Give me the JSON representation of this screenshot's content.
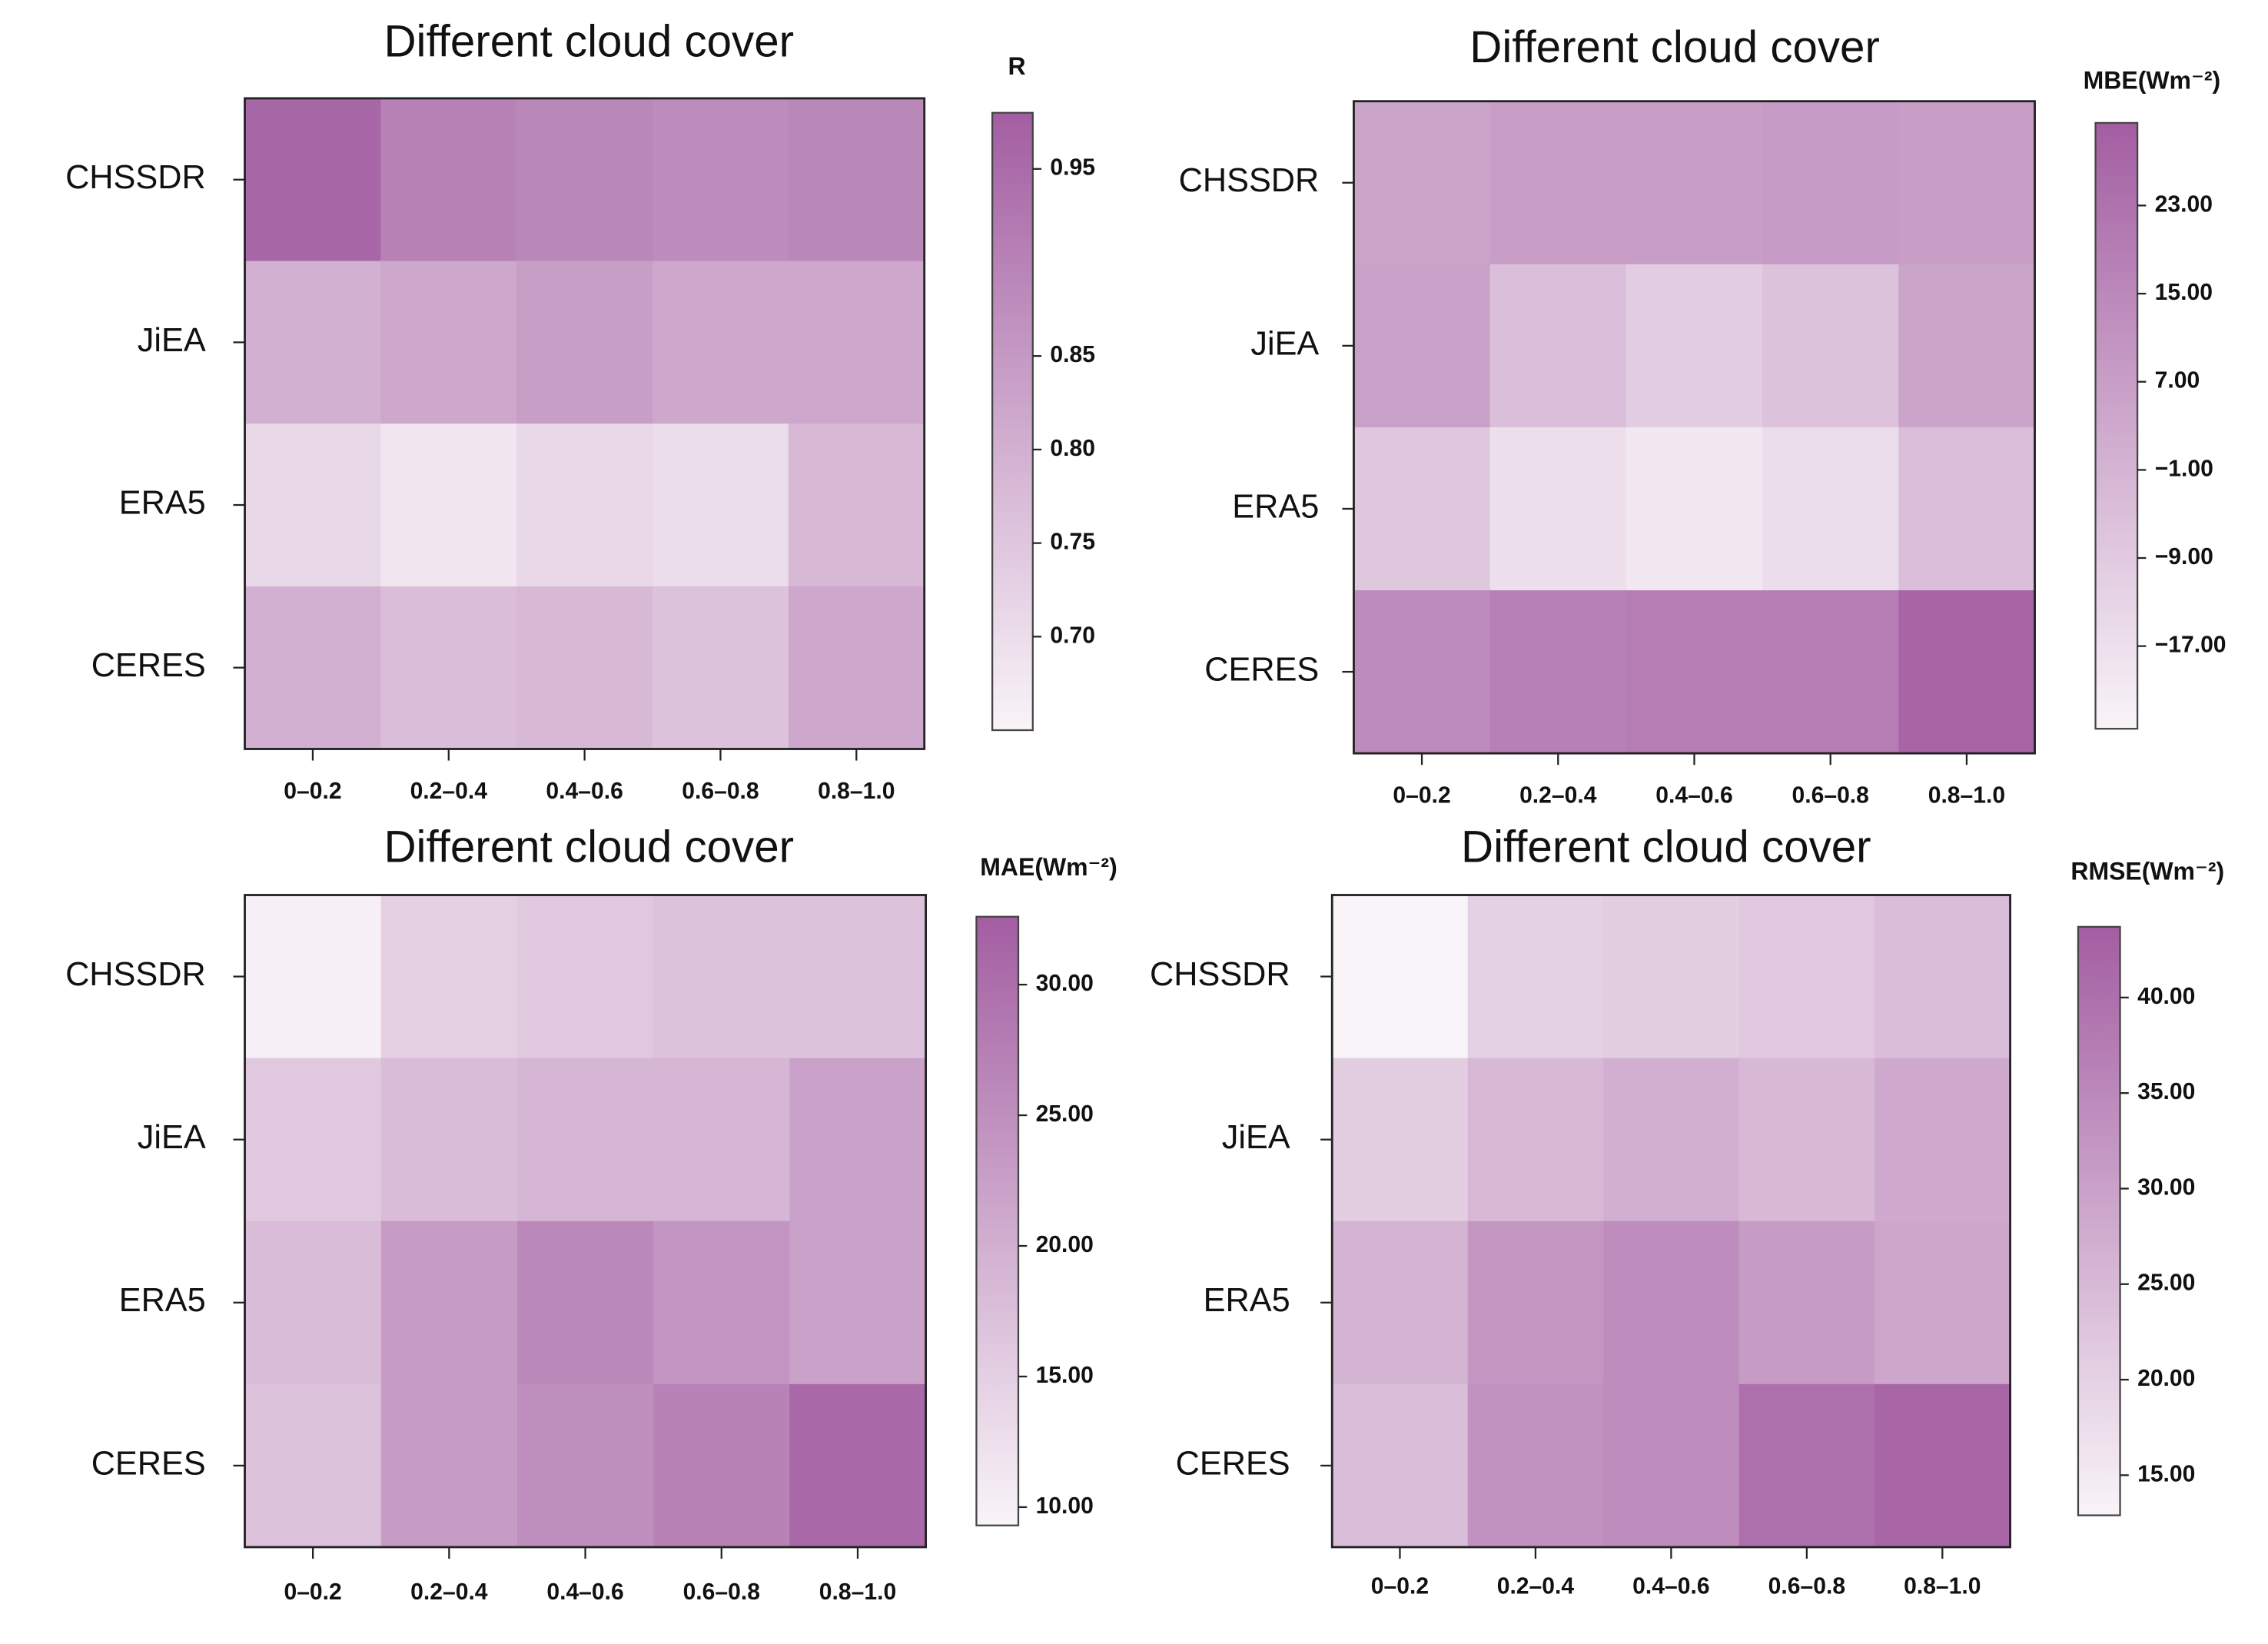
{
  "chart_data": [
    {
      "type": "heatmap",
      "title": "Different cloud cover",
      "colorbar_label": "R",
      "x_categories": [
        "0–0.2",
        "0.2–0.4",
        "0.4–0.6",
        "0.6–0.8",
        "0.8–1.0"
      ],
      "y_categories": [
        "CHSSDR",
        "JiEA",
        "ERA5",
        "CERES"
      ],
      "values": [
        [
          0.96,
          0.9,
          0.89,
          0.88,
          0.89
        ],
        [
          0.8,
          0.82,
          0.84,
          0.82,
          0.82
        ],
        [
          0.71,
          0.68,
          0.71,
          0.7,
          0.78
        ],
        [
          0.8,
          0.77,
          0.78,
          0.76,
          0.82
        ]
      ],
      "clim": [
        0.65,
        0.98
      ],
      "cticks": [
        0.95,
        0.85,
        {
          "value": 0.8,
          "label": "0.80"
        },
        0.75,
        {
          "value": 0.7,
          "label": "0.70"
        }
      ],
      "colormap": [
        "#f9f4f8",
        "#a35ea2"
      ]
    },
    {
      "type": "heatmap",
      "title": "Different cloud cover",
      "colorbar_label": "MBE(Wm⁻²)",
      "x_categories": [
        "0–0.2",
        "0.2–0.4",
        "0.4–0.6",
        "0.6–0.8",
        "0.8–1.0"
      ],
      "y_categories": [
        "CHSSDR",
        "JiEA",
        "ERA5",
        "CERES"
      ],
      "values": [
        [
          5,
          7,
          7,
          8,
          7
        ],
        [
          6,
          -5,
          -10,
          -6,
          5
        ],
        [
          -8,
          -17,
          -20,
          -16,
          -5
        ],
        [
          14,
          18,
          19,
          19,
          28
        ]
      ],
      "clim": [
        -24.5,
        30.5
      ],
      "cticks": [
        {
          "value": 23,
          "label": "23.00"
        },
        {
          "value": 15,
          "label": "15.00"
        },
        {
          "value": 7,
          "label": "7.00"
        },
        {
          "value": -1,
          "label": "−1.00"
        },
        {
          "value": -9,
          "label": "−9.00"
        },
        {
          "value": -17,
          "label": "−17.00"
        }
      ],
      "colormap": [
        "#f9f4f8",
        "#a35ea2"
      ]
    },
    {
      "type": "heatmap",
      "title": "Different cloud cover",
      "colorbar_label": "MAE(Wm⁻²)",
      "x_categories": [
        "0–0.2",
        "0.2–0.4",
        "0.4–0.6",
        "0.6–0.8",
        "0.8–1.0"
      ],
      "y_categories": [
        "CHSSDR",
        "JiEA",
        "ERA5",
        "CERES"
      ],
      "values": [
        [
          10,
          15,
          16,
          17,
          17
        ],
        [
          16,
          18,
          19,
          19,
          22
        ],
        [
          18,
          23,
          26,
          24,
          22
        ],
        [
          17,
          23,
          25,
          27,
          31
        ]
      ],
      "clim": [
        9.3,
        32.6
      ],
      "cticks": [
        {
          "value": 30,
          "label": "30.00"
        },
        {
          "value": 25,
          "label": "25.00"
        },
        {
          "value": 20,
          "label": "20.00"
        },
        {
          "value": 15,
          "label": "15.00"
        },
        {
          "value": 10,
          "label": "10.00"
        }
      ],
      "colormap": [
        "#f9f4f8",
        "#a35ea2"
      ]
    },
    {
      "type": "heatmap",
      "title": "Different cloud cover",
      "colorbar_label": "RMSE(Wm⁻²)",
      "x_categories": [
        "0–0.2",
        "0.2–0.4",
        "0.4–0.6",
        "0.6–0.8",
        "0.8–1.0"
      ],
      "y_categories": [
        "CHSSDR",
        "JiEA",
        "ERA5",
        "CERES"
      ],
      "values": [
        [
          13,
          20,
          21,
          22,
          24
        ],
        [
          21,
          25,
          27,
          25,
          28
        ],
        [
          26,
          32,
          34,
          31,
          29
        ],
        [
          24,
          33,
          34,
          40,
          42
        ]
      ],
      "clim": [
        12.9,
        43.7
      ],
      "cticks": [
        {
          "value": 40,
          "label": "40.00"
        },
        {
          "value": 35,
          "label": "35.00"
        },
        {
          "value": 30,
          "label": "30.00"
        },
        {
          "value": 25,
          "label": "25.00"
        },
        {
          "value": 20,
          "label": "20.00"
        },
        {
          "value": 15,
          "label": "15.00"
        }
      ],
      "colormap": [
        "#f9f4f8",
        "#a35ea2"
      ]
    }
  ]
}
